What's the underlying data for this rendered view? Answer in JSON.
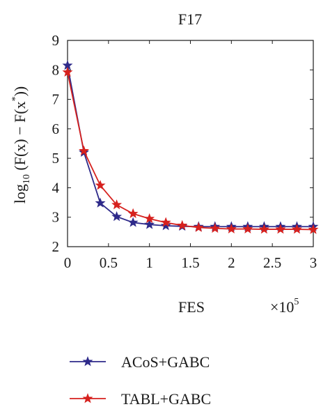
{
  "chart_data": {
    "type": "line",
    "title": "F17",
    "xlabel": "FES",
    "x_multiplier_base": "×10",
    "x_multiplier_exp": "5",
    "ylabel_prefix": "log",
    "ylabel_sub": "10",
    "ylabel_rest": " (F(x) − F(x",
    "ylabel_sup": "*",
    "ylabel_end": "))",
    "xlim": [
      0,
      3
    ],
    "ylim": [
      2,
      9
    ],
    "xticks": [
      0,
      0.5,
      1,
      1.5,
      2,
      2.5,
      3
    ],
    "xtick_labels": [
      "0",
      "0.5",
      "1",
      "1.5",
      "2",
      "2.5",
      "3"
    ],
    "yticks": [
      2,
      3,
      4,
      5,
      6,
      7,
      8,
      9
    ],
    "ytick_labels": [
      "2",
      "3",
      "4",
      "5",
      "6",
      "7",
      "8",
      "9"
    ],
    "x": [
      0,
      0.2,
      0.4,
      0.6,
      0.8,
      1.0,
      1.2,
      1.4,
      1.6,
      1.8,
      2.0,
      2.2,
      2.4,
      2.6,
      2.8,
      3.0
    ],
    "series": [
      {
        "name": "ACoS+GABC",
        "color": "#2e2a8a",
        "values": [
          8.15,
          5.2,
          3.48,
          3.02,
          2.82,
          2.75,
          2.71,
          2.69,
          2.68,
          2.68,
          2.68,
          2.68,
          2.68,
          2.68,
          2.68,
          2.68
        ]
      },
      {
        "name": "TABL+GABC",
        "color": "#d6211e",
        "values": [
          7.92,
          5.25,
          4.08,
          3.42,
          3.12,
          2.95,
          2.82,
          2.72,
          2.65,
          2.62,
          2.6,
          2.6,
          2.59,
          2.59,
          2.59,
          2.58
        ]
      }
    ],
    "legend_position": "bottom",
    "grid": false
  }
}
